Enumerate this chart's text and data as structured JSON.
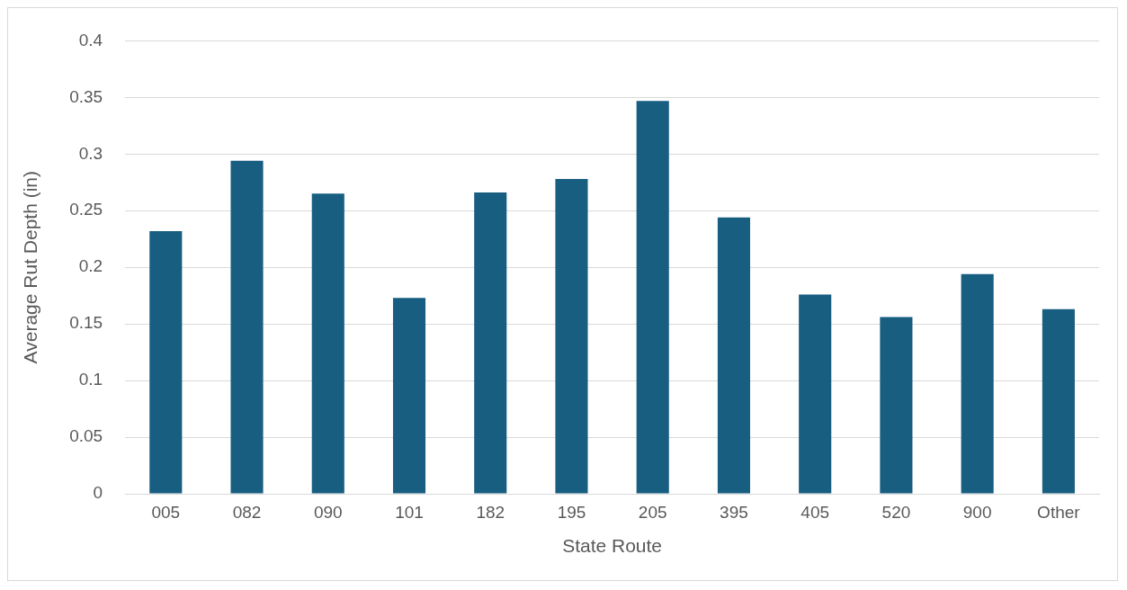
{
  "chart_data": {
    "type": "bar",
    "xlabel": "State Route",
    "ylabel": "Average Rut Depth (in)",
    "categories": [
      "005",
      "082",
      "090",
      "101",
      "182",
      "195",
      "205",
      "395",
      "405",
      "520",
      "900",
      "Other"
    ],
    "values": [
      0.232,
      0.294,
      0.265,
      0.173,
      0.266,
      0.278,
      0.347,
      0.244,
      0.176,
      0.156,
      0.194,
      0.163
    ],
    "color": "#175e81",
    "ylim": [
      0,
      0.4
    ],
    "yticks": [
      0,
      0.05,
      0.1,
      0.15,
      0.2,
      0.25,
      0.3,
      0.35,
      0.4
    ],
    "grid": "y"
  }
}
